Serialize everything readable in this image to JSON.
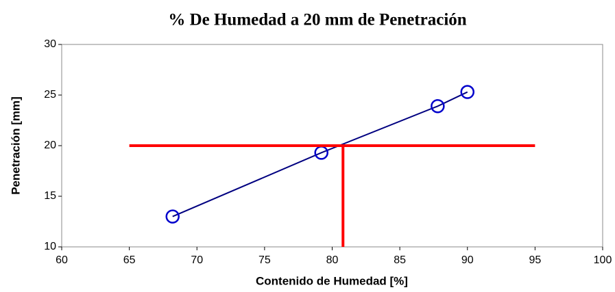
{
  "chart_data": {
    "type": "scatter",
    "title": "% De Humedad a 20 mm de Penetración",
    "x_label": "Contenido de Humedad [%]",
    "y_label": "Penetración [mm]",
    "xlim": [
      60,
      100
    ],
    "xticks": [
      60,
      65,
      70,
      75,
      80,
      85,
      90,
      95,
      100
    ],
    "ylim": [
      10,
      30
    ],
    "yticks": [
      10,
      15,
      20,
      25,
      30
    ],
    "grid": false,
    "series": [
      {
        "color": "#0000cc",
        "line_color": "#000080",
        "marker": "circle",
        "line": true,
        "line_width": 2,
        "x": [
          68.2,
          79.2,
          87.8,
          90.0
        ],
        "values": [
          13.0,
          19.3,
          23.9,
          25.3
        ]
      },
      {
        "color": "#ff0000",
        "marker": "none",
        "line": true,
        "line_width": 4,
        "x": [
          65,
          95
        ],
        "values": [
          20,
          20
        ]
      },
      {
        "color": "#ff0000",
        "marker": "none",
        "line": true,
        "line_width": 4,
        "x": [
          80.8,
          80.8
        ],
        "values": [
          10,
          20
        ]
      }
    ]
  }
}
